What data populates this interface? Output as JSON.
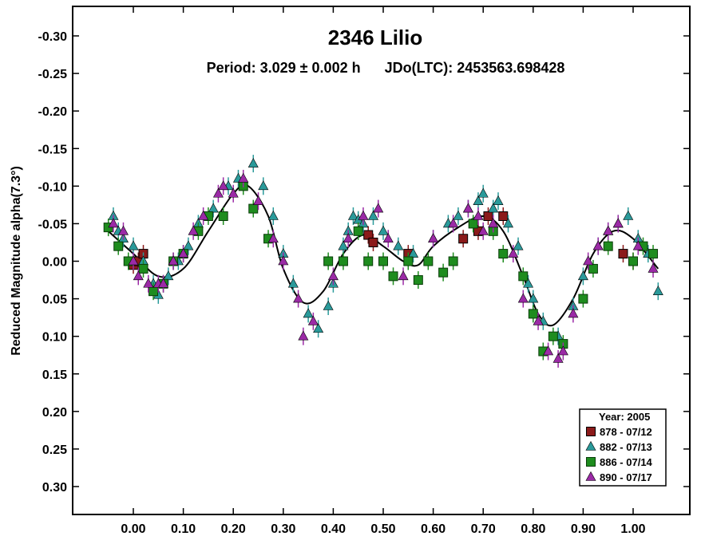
{
  "chart_data": {
    "type": "scatter",
    "title": "2346 Lilio",
    "subtitle": "Period: 3.029 ± 0.002 h      JDo(LTC): 2453563.698428",
    "ylabel": "Reduced Magnitude alpha(7.3°)",
    "xlabel": "",
    "xlim": [
      -0.12,
      1.12
    ],
    "ylim": [
      -0.3,
      0.3
    ],
    "y_inverted": true,
    "x_ticks": [
      0.0,
      0.1,
      0.2,
      0.3,
      0.4,
      0.5,
      0.6,
      0.7,
      0.8,
      0.9,
      1.0
    ],
    "x_tick_labels": [
      "0.00",
      "0.10",
      "0.20",
      "0.30",
      "0.40",
      "0.50",
      "0.60",
      "0.70",
      "0.80",
      "0.90",
      "1.00"
    ],
    "y_ticks": [
      -0.3,
      -0.25,
      -0.2,
      -0.15,
      -0.1,
      -0.05,
      0.0,
      0.05,
      0.1,
      0.15,
      0.2,
      0.25,
      0.3
    ],
    "y_tick_labels": [
      "-0.30",
      "-0.25",
      "-0.20",
      "-0.15",
      "-0.10",
      "-0.05",
      "0.00",
      "0.05",
      "0.10",
      "0.15",
      "0.20",
      "0.25",
      "0.30"
    ],
    "grid": false,
    "legend": {
      "title": "Year: 2005",
      "placement": "bottom-right",
      "entries": [
        {
          "label": "878 - 07/12",
          "marker": "square",
          "color": "#8b1a1a"
        },
        {
          "label": "882 - 07/13",
          "marker": "triangle",
          "color": "#2a9a9a"
        },
        {
          "label": "886 - 07/14",
          "marker": "square",
          "color": "#1e8c1e"
        },
        {
          "label": "890 - 07/17",
          "marker": "triangle",
          "color": "#9b2aa6"
        }
      ]
    },
    "fit_curve": {
      "x": [
        -0.05,
        0.0,
        0.05,
        0.1,
        0.15,
        0.2,
        0.23,
        0.27,
        0.3,
        0.34,
        0.38,
        0.42,
        0.46,
        0.5,
        0.54,
        0.57,
        0.6,
        0.65,
        0.7,
        0.74,
        0.78,
        0.81,
        0.84,
        0.88,
        0.92,
        0.96,
        1.0,
        1.05
      ],
      "y": [
        -0.04,
        -0.01,
        0.02,
        0.01,
        -0.04,
        -0.09,
        -0.1,
        -0.06,
        0.01,
        0.055,
        0.04,
        -0.01,
        -0.035,
        -0.02,
        0.0,
        0.005,
        -0.02,
        -0.045,
        -0.06,
        -0.04,
        0.02,
        0.07,
        0.085,
        0.05,
        -0.01,
        -0.04,
        -0.03,
        0.01
      ]
    },
    "series": [
      {
        "name": "878 - 07/12",
        "x": [
          0.0,
          0.01,
          0.02,
          0.47,
          0.48,
          0.55,
          0.66,
          0.71,
          0.74,
          0.69,
          0.98,
          1.0
        ],
        "y": [
          0.005,
          0.0,
          -0.01,
          -0.035,
          -0.025,
          -0.01,
          -0.03,
          -0.06,
          -0.06,
          -0.04,
          -0.01,
          0.0
        ]
      },
      {
        "name": "882 - 07/13",
        "x": [
          -0.04,
          -0.03,
          -0.02,
          0.0,
          0.02,
          0.04,
          0.05,
          0.07,
          0.09,
          0.11,
          0.13,
          0.16,
          0.19,
          0.21,
          0.24,
          0.26,
          0.28,
          0.3,
          0.32,
          0.35,
          0.37,
          0.39,
          0.4,
          0.42,
          0.43,
          0.44,
          0.45,
          0.46,
          0.48,
          0.5,
          0.53,
          0.56,
          0.6,
          0.63,
          0.65,
          0.67,
          0.69,
          0.7,
          0.72,
          0.73,
          0.75,
          0.77,
          0.79,
          0.8,
          0.82,
          0.85,
          0.88,
          0.9,
          0.93,
          0.95,
          0.97,
          0.99,
          1.01,
          1.03,
          1.05
        ],
        "y": [
          -0.06,
          -0.04,
          -0.03,
          -0.02,
          0.0,
          0.03,
          0.045,
          0.02,
          0.0,
          -0.02,
          -0.05,
          -0.07,
          -0.1,
          -0.11,
          -0.13,
          -0.1,
          -0.06,
          -0.01,
          0.03,
          0.07,
          0.09,
          0.06,
          0.03,
          -0.02,
          -0.04,
          -0.06,
          -0.055,
          -0.05,
          -0.06,
          -0.04,
          -0.02,
          -0.01,
          -0.03,
          -0.05,
          -0.06,
          -0.07,
          -0.08,
          -0.09,
          -0.07,
          -0.08,
          -0.05,
          -0.02,
          0.03,
          0.05,
          0.08,
          0.1,
          0.06,
          0.02,
          -0.02,
          -0.04,
          -0.05,
          -0.06,
          -0.03,
          -0.01,
          0.04
        ]
      },
      {
        "name": "886 - 07/14",
        "x": [
          -0.05,
          -0.03,
          -0.01,
          0.02,
          0.04,
          0.06,
          0.08,
          0.1,
          0.13,
          0.15,
          0.18,
          0.22,
          0.24,
          0.27,
          0.39,
          0.42,
          0.45,
          0.47,
          0.5,
          0.52,
          0.55,
          0.57,
          0.59,
          0.62,
          0.64,
          0.68,
          0.72,
          0.74,
          0.78,
          0.8,
          0.82,
          0.84,
          0.86,
          0.9,
          0.92,
          0.95,
          1.0,
          1.02,
          1.04
        ],
        "y": [
          -0.045,
          -0.02,
          0.0,
          0.01,
          0.04,
          0.03,
          0.0,
          -0.01,
          -0.04,
          -0.06,
          -0.06,
          -0.1,
          -0.07,
          -0.03,
          0.0,
          0.0,
          -0.04,
          0.0,
          0.0,
          0.02,
          0.0,
          0.025,
          0.0,
          0.015,
          0.0,
          -0.05,
          -0.04,
          -0.01,
          0.02,
          0.07,
          0.12,
          0.1,
          0.11,
          0.05,
          0.01,
          -0.02,
          0.0,
          -0.02,
          -0.01
        ]
      },
      {
        "name": "890 - 07/17",
        "x": [
          -0.04,
          -0.02,
          0.0,
          0.01,
          0.03,
          0.05,
          0.06,
          0.08,
          0.1,
          0.12,
          0.14,
          0.17,
          0.18,
          0.2,
          0.22,
          0.25,
          0.28,
          0.3,
          0.33,
          0.34,
          0.36,
          0.4,
          0.43,
          0.46,
          0.49,
          0.51,
          0.54,
          0.6,
          0.64,
          0.67,
          0.69,
          0.7,
          0.72,
          0.76,
          0.78,
          0.81,
          0.83,
          0.85,
          0.86,
          0.88,
          0.91,
          0.93,
          0.95,
          0.97,
          1.01,
          1.04
        ],
        "y": [
          -0.05,
          -0.04,
          0.0,
          0.02,
          0.03,
          0.03,
          0.03,
          0.0,
          -0.01,
          -0.04,
          -0.06,
          -0.09,
          -0.1,
          -0.09,
          -0.11,
          -0.08,
          -0.03,
          0.0,
          0.05,
          0.1,
          0.08,
          0.02,
          -0.03,
          -0.06,
          -0.07,
          -0.03,
          0.02,
          -0.03,
          -0.05,
          -0.07,
          -0.06,
          -0.04,
          -0.05,
          -0.01,
          0.05,
          0.08,
          0.12,
          0.13,
          0.12,
          0.07,
          0.0,
          -0.02,
          -0.04,
          -0.05,
          -0.02,
          0.01
        ]
      }
    ]
  }
}
